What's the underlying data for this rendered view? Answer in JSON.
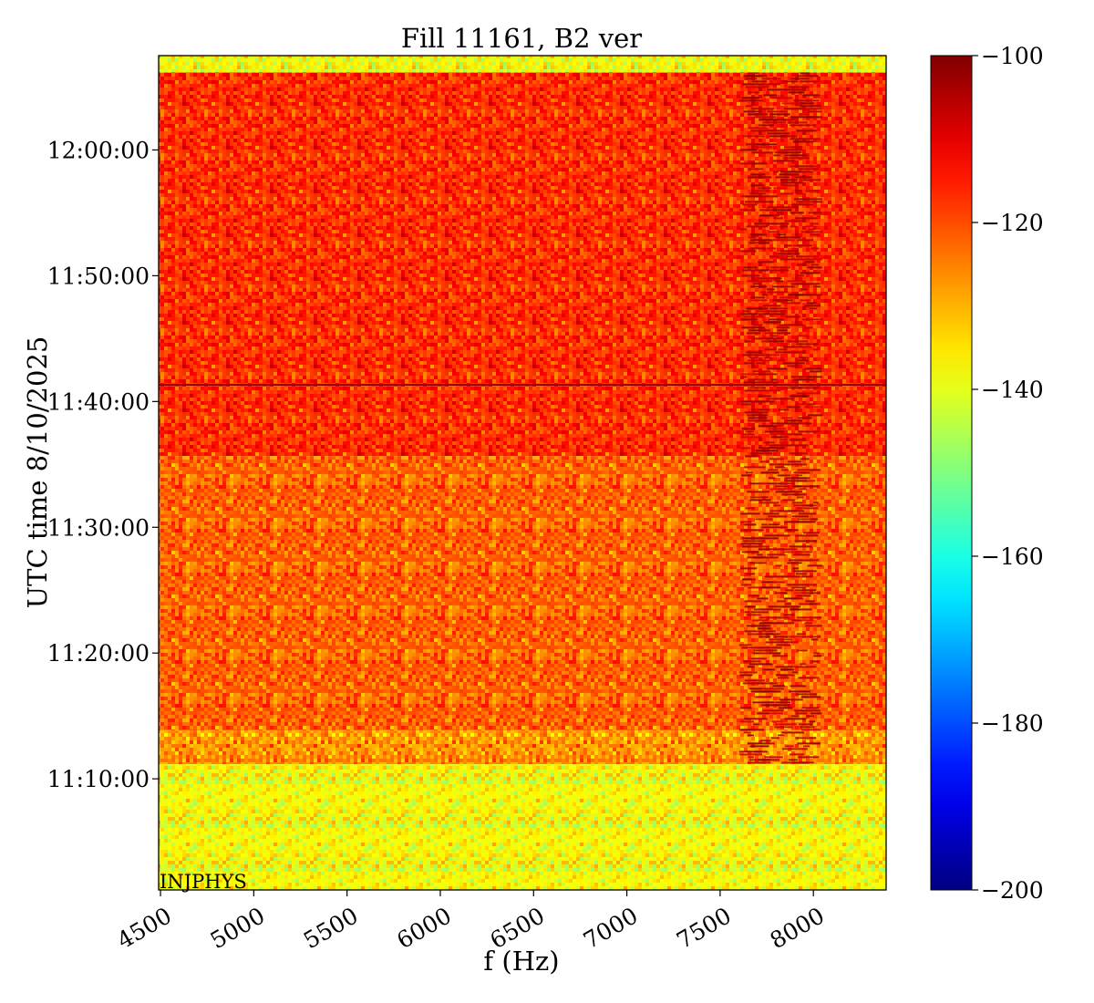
{
  "chart_data": {
    "type": "heatmap",
    "title": "Fill 11161, B2 ver",
    "xlabel": "f (Hz)",
    "ylabel": "UTC time 8/10/2025",
    "xlim": [
      4490,
      8390
    ],
    "x_ticks": [
      4500,
      5000,
      5500,
      6000,
      6500,
      7000,
      7500,
      8000
    ],
    "x_tick_labels": [
      "4500",
      "5000",
      "5500",
      "6000",
      "6500",
      "7000",
      "7500",
      "8000"
    ],
    "ylim": [
      "11:01:10",
      "12:07:30"
    ],
    "y_ticks": [
      "11:10:00",
      "11:20:00",
      "11:30:00",
      "11:40:00",
      "11:50:00",
      "12:00:00"
    ],
    "colorbar": {
      "min": -200,
      "max": -100,
      "ticks": [
        -100,
        -120,
        -140,
        -160,
        -180,
        -200
      ],
      "tick_labels": [
        "−100",
        "−120",
        "−140",
        "−160",
        "−180",
        "−200"
      ],
      "colormap": "jet"
    },
    "regions": [
      {
        "t_start": "11:01:10",
        "t_end": "11:11:10",
        "level_db": -138
      },
      {
        "t_start": "11:11:10",
        "t_end": "11:13:50",
        "level_db": -127
      },
      {
        "t_start": "11:13:50",
        "t_end": "11:35:40",
        "level_db": -122
      },
      {
        "t_start": "11:35:40",
        "t_end": "12:06:10",
        "level_db": -117
      },
      {
        "t_start": "12:06:10",
        "t_end": "12:07:30",
        "level_db": -138
      }
    ],
    "features": [
      {
        "kind": "band",
        "f_start": 7600,
        "f_end": 8050,
        "t_start": "11:11:10",
        "t_end": "12:06:10",
        "level_db": -104
      },
      {
        "kind": "line",
        "t": "11:41:20",
        "level_db": -102
      }
    ],
    "annotation": "INJPHYS"
  }
}
